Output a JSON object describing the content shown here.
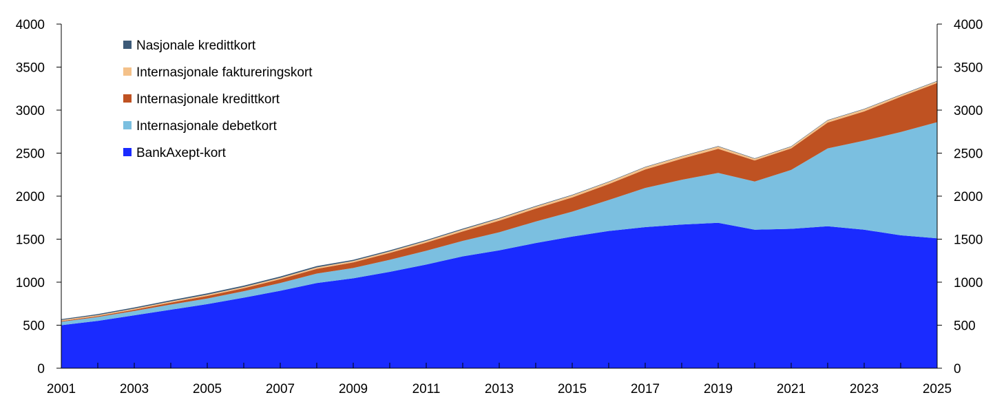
{
  "chart_data": {
    "type": "area",
    "stacked": true,
    "title": "",
    "xlabel": "",
    "ylabel": "",
    "x": [
      2001,
      2002,
      2003,
      2004,
      2005,
      2006,
      2007,
      2008,
      2009,
      2010,
      2011,
      2012,
      2013,
      2014,
      2015,
      2016,
      2017,
      2018,
      2019,
      2020,
      2021,
      2022,
      2023,
      2024,
      2025
    ],
    "ylim": [
      0,
      4000
    ],
    "xlim": [
      2001,
      2025
    ],
    "y_ticks": [
      "0",
      "500",
      "1000",
      "1500",
      "2000",
      "2500",
      "3000",
      "3500",
      "4000"
    ],
    "x_ticks": [
      "2001",
      "2003",
      "2005",
      "2007",
      "2009",
      "2011",
      "2013",
      "2015",
      "2017",
      "2019",
      "2021",
      "2023",
      "2025"
    ],
    "secondary_y_axis": true,
    "grid": false,
    "legend_position": "top-left",
    "series": [
      {
        "name": "BankAxept-kort",
        "color": "#1a2bff",
        "values": [
          500,
          550,
          615,
          680,
          745,
          820,
          900,
          990,
          1045,
          1120,
          1205,
          1300,
          1370,
          1455,
          1530,
          1595,
          1640,
          1670,
          1690,
          1610,
          1620,
          1650,
          1610,
          1545,
          1510
        ]
      },
      {
        "name": "Internasjonale debetkort",
        "color": "#7bbfe0",
        "values": [
          40,
          45,
          50,
          60,
          65,
          75,
          90,
          110,
          120,
          140,
          160,
          180,
          210,
          250,
          290,
          360,
          455,
          520,
          580,
          560,
          685,
          905,
          1035,
          1200,
          1350
        ]
      },
      {
        "name": "Internasjonale kredittkort",
        "color": "#bf5222",
        "values": [
          8,
          10,
          15,
          22,
          30,
          35,
          45,
          55,
          65,
          80,
          95,
          110,
          135,
          150,
          165,
          185,
          215,
          245,
          280,
          245,
          250,
          300,
          340,
          410,
          455
        ]
      },
      {
        "name": "Internasjonale faktureringskort",
        "color": "#f4c18a",
        "values": [
          12,
          12,
          13,
          14,
          15,
          15,
          16,
          17,
          17,
          18,
          20,
          22,
          24,
          24,
          25,
          25,
          26,
          26,
          27,
          20,
          20,
          25,
          25,
          20,
          20
        ]
      },
      {
        "name": "Nasjonale kredittkort",
        "color": "#3d5a78",
        "values": [
          10,
          12,
          13,
          14,
          15,
          15,
          15,
          15,
          13,
          12,
          10,
          10,
          8,
          7,
          6,
          5,
          5,
          5,
          5,
          5,
          5,
          5,
          5,
          5,
          5
        ]
      }
    ]
  }
}
